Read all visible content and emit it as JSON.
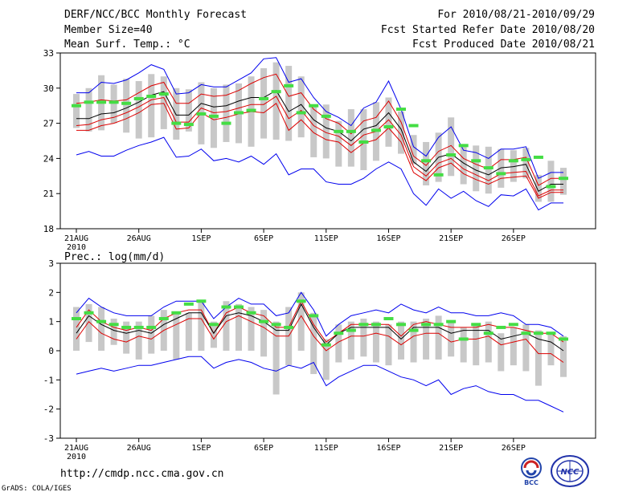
{
  "header": {
    "title": "DERF/NCC/BCC Monthly Forecast",
    "member_size": "Member Size=40",
    "variable": "Mean Surf. Temp.: °C",
    "period": "For 2010/08/21-2010/09/29",
    "fcst_started": "Fcst Started Refer Date 2010/08/20",
    "fcst_produced": "Fcst Produced Date 2010/08/21"
  },
  "footer": {
    "url": "http://cmdp.ncc.cma.gov.cn",
    "grads": "GrADS: COLA/IGES",
    "logo_left_text": "BCC",
    "logo_right_text": "NCC"
  },
  "colors": {
    "envelope": "#0000ee",
    "spread": "#dd0000",
    "mean": "#000000",
    "box": "#c8c8c8",
    "obs": "#44dd44"
  },
  "chart_data": [
    {
      "type": "line",
      "title": "Mean Surf. Temp.: °C",
      "ylim": [
        18,
        33
      ],
      "yticks": [
        18,
        21,
        24,
        27,
        30,
        33
      ],
      "x": [
        1,
        2,
        3,
        4,
        5,
        6,
        7,
        8,
        9,
        10,
        11,
        12,
        13,
        14,
        15,
        16,
        17,
        18,
        19,
        20,
        21,
        22,
        23,
        24,
        25,
        26,
        27,
        28,
        29,
        30,
        31,
        32,
        33,
        34,
        35,
        36,
        37,
        38,
        39,
        40
      ],
      "xtick_positions": [
        1,
        6,
        11,
        16,
        21,
        26,
        31,
        36
      ],
      "xtick_labels": [
        "21AUG",
        "26AUG",
        "1SEP",
        "6SEP",
        "11SEP",
        "16SEP",
        "21SEP",
        "26SEP"
      ],
      "xtick_year": "2010",
      "series": [
        {
          "name": "ensemble max",
          "values": [
            29.6,
            29.6,
            30.5,
            30.4,
            30.7,
            31.3,
            32.0,
            31.6,
            29.5,
            29.6,
            30.3,
            30.1,
            30.1,
            30.7,
            31.3,
            32.5,
            32.6,
            30.5,
            30.8,
            29.2,
            28.0,
            27.5,
            26.8,
            28.3,
            28.8,
            30.6,
            28.2,
            25.0,
            24.2,
            25.8,
            26.7,
            24.7,
            24.5,
            24.0,
            24.8,
            24.8,
            25.0,
            22.3,
            22.8,
            22.8
          ]
        },
        {
          "name": "upper spread",
          "values": [
            28.7,
            28.8,
            29.0,
            28.9,
            29.0,
            29.6,
            30.2,
            30.5,
            28.7,
            28.7,
            29.5,
            29.3,
            29.4,
            29.8,
            30.4,
            30.9,
            31.2,
            29.3,
            29.6,
            28.2,
            27.4,
            27.0,
            26.1,
            27.2,
            27.5,
            28.9,
            27.1,
            24.2,
            23.4,
            24.6,
            25.1,
            24.0,
            23.5,
            23.1,
            23.9,
            23.9,
            24.1,
            21.7,
            22.3,
            22.3
          ]
        },
        {
          "name": "ensemble mean",
          "values": [
            27.4,
            27.4,
            27.8,
            27.9,
            28.3,
            28.8,
            29.4,
            29.7,
            27.7,
            27.7,
            28.7,
            28.4,
            28.5,
            28.9,
            29.2,
            29.2,
            29.8,
            28.0,
            28.6,
            27.3,
            26.6,
            26.3,
            25.5,
            26.5,
            26.8,
            27.9,
            26.5,
            23.7,
            22.9,
            24.1,
            24.4,
            23.6,
            23.0,
            22.6,
            23.2,
            23.3,
            23.5,
            21.2,
            21.8,
            21.8
          ]
        },
        {
          "name": "lower spread",
          "values": [
            26.8,
            26.9,
            27.3,
            27.5,
            27.9,
            28.4,
            29.0,
            29.2,
            27.1,
            27.1,
            28.3,
            27.9,
            28.0,
            28.3,
            28.6,
            28.6,
            29.3,
            27.4,
            28.1,
            26.8,
            26.2,
            25.9,
            25.1,
            26.0,
            26.3,
            27.3,
            26.0,
            23.3,
            22.5,
            23.6,
            24.0,
            23.1,
            22.6,
            22.1,
            22.7,
            22.8,
            22.9,
            20.8,
            21.3,
            21.3
          ]
        },
        {
          "name": "lowest",
          "values": [
            26.4,
            26.4,
            26.8,
            27.0,
            27.4,
            27.9,
            28.6,
            28.7,
            26.5,
            26.6,
            27.9,
            27.3,
            27.5,
            27.8,
            28.0,
            27.9,
            28.7,
            26.4,
            27.3,
            26.2,
            25.6,
            25.4,
            24.5,
            25.3,
            25.6,
            26.6,
            25.4,
            22.8,
            22.1,
            23.2,
            23.6,
            22.7,
            22.2,
            21.8,
            22.3,
            22.4,
            22.5,
            20.6,
            21.1,
            21.1
          ]
        },
        {
          "name": "ensemble min",
          "values": [
            24.3,
            24.6,
            24.2,
            24.2,
            24.7,
            25.1,
            25.4,
            25.8,
            24.1,
            24.2,
            24.8,
            23.8,
            24.0,
            23.7,
            24.2,
            23.5,
            24.4,
            22.6,
            23.1,
            23.1,
            22.0,
            21.8,
            21.8,
            22.3,
            23.1,
            23.7,
            23.1,
            21.0,
            20.0,
            21.4,
            20.6,
            21.2,
            20.4,
            19.9,
            20.9,
            20.8,
            21.4,
            19.6,
            20.2,
            20.2
          ]
        },
        {
          "name": "observed",
          "values": [
            28.5,
            28.8,
            28.8,
            28.8,
            28.7,
            29.1,
            29.3,
            29.5,
            27.0,
            26.9,
            27.8,
            27.6,
            27.0,
            27.9,
            28.1,
            29.1,
            29.7,
            30.2,
            27.9,
            28.5,
            27.6,
            26.3,
            26.3,
            25.4,
            26.4,
            26.7,
            28.2,
            26.8,
            23.8,
            22.6,
            24.3,
            25.1,
            23.8,
            23.2,
            22.7,
            23.8,
            23.9,
            24.1,
            21.6,
            22.3
          ]
        }
      ],
      "box_ranges": [
        [
          26.6,
          29.5
        ],
        [
          26.3,
          30.0
        ],
        [
          26.4,
          31.1
        ],
        [
          27.0,
          30.3
        ],
        [
          26.2,
          30.8
        ],
        [
          25.7,
          30.6
        ],
        [
          25.8,
          31.2
        ],
        [
          26.5,
          31.0
        ],
        [
          25.6,
          30.0
        ],
        [
          26.3,
          29.9
        ],
        [
          25.2,
          30.5
        ],
        [
          24.9,
          30.0
        ],
        [
          25.4,
          30.3
        ],
        [
          25.3,
          30.4
        ],
        [
          25.0,
          31.0
        ],
        [
          25.7,
          31.7
        ],
        [
          25.6,
          32.2
        ],
        [
          25.5,
          31.9
        ],
        [
          25.8,
          31.0
        ],
        [
          24.1,
          28.5
        ],
        [
          24.0,
          28.6
        ],
        [
          23.3,
          27.2
        ],
        [
          23.3,
          28.2
        ],
        [
          23.0,
          28.2
        ],
        [
          23.8,
          28.8
        ],
        [
          25.0,
          29.2
        ],
        [
          24.4,
          28.0
        ],
        [
          23.5,
          26.0
        ],
        [
          21.7,
          25.4
        ],
        [
          22.0,
          26.2
        ],
        [
          22.5,
          27.5
        ],
        [
          21.8,
          25.2
        ],
        [
          21.2,
          25.1
        ],
        [
          21.0,
          25.0
        ],
        [
          21.5,
          24.8
        ],
        [
          22.0,
          24.7
        ],
        [
          22.3,
          24.9
        ],
        [
          20.3,
          22.6
        ],
        [
          20.3,
          23.8
        ],
        [
          20.9,
          23.2
        ]
      ]
    },
    {
      "type": "line",
      "title": "Prec.: log(mm/d)",
      "ylim": [
        -3,
        3
      ],
      "yticks": [
        -3,
        -2,
        -1,
        0,
        1,
        2,
        3
      ],
      "x": [
        1,
        2,
        3,
        4,
        5,
        6,
        7,
        8,
        9,
        10,
        11,
        12,
        13,
        14,
        15,
        16,
        17,
        18,
        19,
        20,
        21,
        22,
        23,
        24,
        25,
        26,
        27,
        28,
        29,
        30,
        31,
        32,
        33,
        34,
        35,
        36,
        37,
        38,
        39,
        40
      ],
      "xtick_positions": [
        1,
        6,
        11,
        16,
        21,
        26,
        31,
        36
      ],
      "xtick_labels": [
        "21AUG",
        "26AUG",
        "1SEP",
        "6SEP",
        "11SEP",
        "16SEP",
        "21SEP",
        "26SEP"
      ],
      "xtick_year": "2010",
      "series": [
        {
          "name": "ensemble max",
          "values": [
            1.3,
            1.8,
            1.5,
            1.3,
            1.2,
            1.2,
            1.2,
            1.5,
            1.7,
            1.7,
            1.7,
            1.1,
            1.5,
            1.8,
            1.6,
            1.6,
            1.2,
            1.3,
            2.0,
            1.4,
            0.5,
            0.9,
            1.2,
            1.3,
            1.4,
            1.3,
            1.6,
            1.4,
            1.3,
            1.5,
            1.3,
            1.3,
            1.2,
            1.2,
            1.3,
            1.2,
            0.9,
            0.9,
            0.8,
            0.5
          ]
        },
        {
          "name": "upper spread",
          "values": [
            0.8,
            1.4,
            1.0,
            0.8,
            0.7,
            0.8,
            0.7,
            1.1,
            1.3,
            1.4,
            1.4,
            0.6,
            1.3,
            1.5,
            1.3,
            1.2,
            0.8,
            0.8,
            1.7,
            0.9,
            0.3,
            0.6,
            0.9,
            0.9,
            0.9,
            0.9,
            0.5,
            0.9,
            1.0,
            0.9,
            0.8,
            0.8,
            0.8,
            0.9,
            0.8,
            0.8,
            0.7,
            0.6,
            0.6,
            0.3
          ]
        },
        {
          "name": "ensemble mean",
          "values": [
            0.6,
            1.2,
            0.9,
            0.7,
            0.6,
            0.7,
            0.6,
            0.9,
            1.1,
            1.3,
            1.3,
            0.6,
            1.2,
            1.3,
            1.2,
            1.0,
            0.7,
            0.7,
            1.6,
            0.8,
            0.2,
            0.6,
            0.8,
            0.8,
            0.8,
            0.8,
            0.4,
            0.8,
            0.8,
            0.8,
            0.6,
            0.7,
            0.7,
            0.7,
            0.4,
            0.5,
            0.6,
            0.4,
            0.3,
            0.0
          ]
        },
        {
          "name": "lower spread",
          "values": [
            0.4,
            1.0,
            0.6,
            0.4,
            0.3,
            0.5,
            0.4,
            0.7,
            0.9,
            1.1,
            1.1,
            0.4,
            1.0,
            1.2,
            1.0,
            0.8,
            0.5,
            0.5,
            1.2,
            0.5,
            0.0,
            0.3,
            0.5,
            0.5,
            0.6,
            0.5,
            0.2,
            0.5,
            0.6,
            0.6,
            0.3,
            0.4,
            0.4,
            0.5,
            0.2,
            0.3,
            0.4,
            -0.1,
            -0.1,
            -0.4
          ]
        },
        {
          "name": "ensemble min",
          "values": [
            -0.8,
            -0.7,
            -0.6,
            -0.7,
            -0.6,
            -0.5,
            -0.5,
            -0.4,
            -0.3,
            -0.2,
            -0.2,
            -0.6,
            -0.4,
            -0.3,
            -0.4,
            -0.6,
            -0.7,
            -0.5,
            -0.6,
            -0.4,
            -1.2,
            -0.9,
            -0.7,
            -0.5,
            -0.5,
            -0.7,
            -0.9,
            -1.0,
            -1.2,
            -1.0,
            -1.5,
            -1.3,
            -1.2,
            -1.4,
            -1.5,
            -1.5,
            -1.7,
            -1.7,
            -1.9,
            -2.1
          ]
        },
        {
          "name": "observed",
          "values": [
            1.1,
            1.3,
            1.0,
            0.9,
            0.8,
            0.8,
            0.8,
            1.1,
            1.3,
            1.6,
            1.7,
            0.9,
            1.5,
            1.5,
            1.3,
            1.0,
            0.9,
            0.8,
            1.7,
            1.2,
            0.2,
            0.6,
            0.7,
            0.9,
            0.9,
            1.1,
            0.9,
            0.7,
            0.9,
            0.9,
            1.0,
            0.4,
            0.9,
            0.6,
            0.8,
            0.9,
            0.6,
            0.6,
            0.6,
            0.4
          ]
        }
      ],
      "box_ranges": [
        [
          0.0,
          1.5
        ],
        [
          0.3,
          1.6
        ],
        [
          0.0,
          1.5
        ],
        [
          0.2,
          1.1
        ],
        [
          -0.1,
          1.0
        ],
        [
          -0.3,
          1.0
        ],
        [
          -0.1,
          1.2
        ],
        [
          0.0,
          1.4
        ],
        [
          -0.3,
          1.3
        ],
        [
          0.0,
          1.3
        ],
        [
          0.0,
          1.7
        ],
        [
          0.1,
          1.0
        ],
        [
          0.0,
          1.7
        ],
        [
          0.0,
          1.6
        ],
        [
          0.0,
          1.5
        ],
        [
          -0.2,
          1.4
        ],
        [
          -1.5,
          1.0
        ],
        [
          -0.5,
          1.5
        ],
        [
          0.0,
          2.0
        ],
        [
          -0.8,
          1.3
        ],
        [
          -1.0,
          0.4
        ],
        [
          -0.4,
          0.9
        ],
        [
          -0.3,
          1.0
        ],
        [
          -0.2,
          1.1
        ],
        [
          -0.4,
          1.0
        ],
        [
          -0.5,
          0.9
        ],
        [
          -0.3,
          1.0
        ],
        [
          -0.4,
          1.0
        ],
        [
          -0.3,
          1.1
        ],
        [
          -0.3,
          1.2
        ],
        [
          -0.2,
          1.0
        ],
        [
          -0.4,
          0.8
        ],
        [
          -0.5,
          0.9
        ],
        [
          -0.4,
          1.0
        ],
        [
          -0.7,
          0.6
        ],
        [
          -0.5,
          0.8
        ],
        [
          -0.7,
          0.9
        ],
        [
          -1.2,
          0.7
        ],
        [
          -0.5,
          0.6
        ],
        [
          -0.9,
          0.5
        ]
      ]
    }
  ]
}
